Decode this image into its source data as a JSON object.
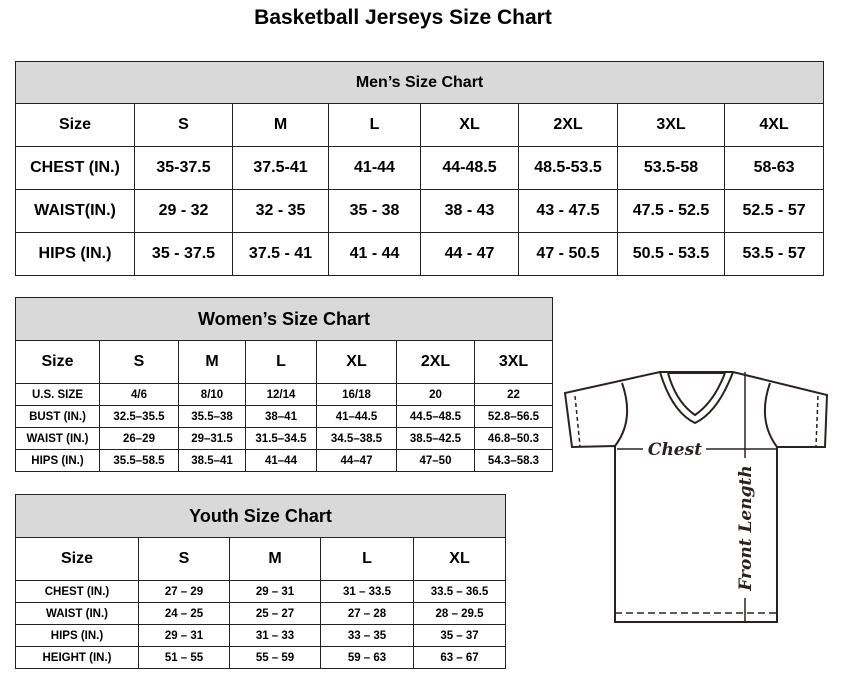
{
  "title": "Basketball Jerseys Size Chart",
  "men": {
    "heading": "Men’s Size Chart",
    "rows": [
      [
        "Size",
        "S",
        "M",
        "L",
        "XL",
        "2XL",
        "3XL",
        "4XL"
      ],
      [
        "CHEST (IN.)",
        "35-37.5",
        "37.5-41",
        "41-44",
        "44-48.5",
        "48.5-53.5",
        "53.5-58",
        "58-63"
      ],
      [
        "WAIST(IN.)",
        "29 - 32",
        "32 - 35",
        "35 - 38",
        "38 - 43",
        "43 - 47.5",
        "47.5 - 52.5",
        "52.5 - 57"
      ],
      [
        "HIPS (IN.)",
        "35 - 37.5",
        "37.5 - 41",
        "41 - 44",
        "44 - 47",
        "47 - 50.5",
        "50.5 - 53.5",
        "53.5 - 57"
      ]
    ]
  },
  "women": {
    "heading": "Women’s Size Chart",
    "rows": [
      [
        "Size",
        "S",
        "M",
        "L",
        "XL",
        "2XL",
        "3XL"
      ],
      [
        "U.S.  SIZE",
        "4/6",
        "8/10",
        "12/14",
        "16/18",
        "20",
        "22"
      ],
      [
        "BUST  (IN.)",
        "32.5–35.5",
        "35.5–38",
        "38–41",
        "41–44.5",
        "44.5–48.5",
        "52.8–56.5"
      ],
      [
        "WAIST  (IN.)",
        "26–29",
        "29–31.5",
        "31.5–34.5",
        "34.5–38.5",
        "38.5–42.5",
        "46.8–50.3"
      ],
      [
        "HIPS  (IN.)",
        "35.5–58.5",
        "38.5–41",
        "41–44",
        "44–47",
        "47–50",
        "54.3–58.3"
      ]
    ]
  },
  "youth": {
    "heading": "Youth Size Chart",
    "rows": [
      [
        "Size",
        "S",
        "M",
        "L",
        "XL"
      ],
      [
        "CHEST  (IN.)",
        "27  –  29",
        "29  –  31",
        "31  –  33.5",
        "33.5  –  36.5"
      ],
      [
        "WAIST  (IN.)",
        "24  –  25",
        "25  –  27",
        "27  –  28",
        "28  –  29.5"
      ],
      [
        "HIPS  (IN.)",
        "29  –  31",
        "31  –  33",
        "33  –  35",
        "35  –  37"
      ],
      [
        "HEIGHT  (IN.)",
        "51  –  55",
        "55  –  59",
        "59  –  63",
        "63  –  67"
      ]
    ]
  },
  "diagram": {
    "chest_label": "Chest",
    "length_label": "Front Length"
  },
  "colors": {
    "header_bg": "#d9d9d9",
    "line": "#2a2220"
  }
}
